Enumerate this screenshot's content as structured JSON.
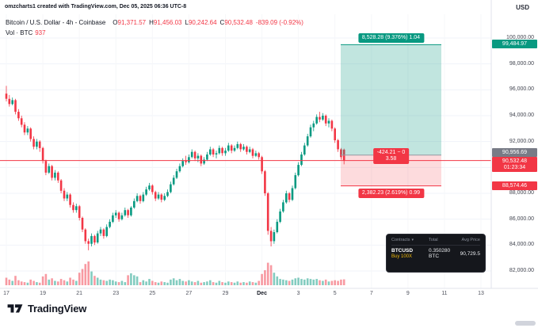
{
  "attribution": "omzcharts1 created with TradingView.com, Dec 05, 2025 06:36 UTC-8",
  "currency_label": "USD",
  "last_price": 90532.48,
  "legend": {
    "title": "Bitcoin / U.S. Dollar - 4h - Coinbase",
    "o_label": "O",
    "o": "91,371.57",
    "h_label": "H",
    "h": "91,456.03",
    "l_label": "L",
    "l": "90,242.64",
    "c_label": "C",
    "c": "90,532.48",
    "change": "-839.09 (-0.92%)",
    "vol_label": "Vol · BTC",
    "vol_value": "937"
  },
  "position_tool": {
    "target_price": 99484.97,
    "entry_price": 90956.69,
    "stop_price": 88574.46,
    "target_label": "8,528.28 (9.376%) 1.04",
    "stop_label": "2,382.23 (2.619%) 0.99",
    "pnl_line1": "-424.21 − 0",
    "pnl_line2": "3.58",
    "target_badge": "99,484.97",
    "entry_badge": "90,956.69",
    "stop_badge": "88,574.46"
  },
  "price_badge": {
    "label": "90,532.48",
    "countdown": "01:23:34"
  },
  "broker_panel": {
    "header": [
      "Contracts",
      "Total",
      "Avg Price"
    ],
    "symbol": "BTCUSD",
    "side": "Buy 100X",
    "total": "0.350280 BTC",
    "avg_price": "90,729.5"
  },
  "footer": {
    "brand": "TradingView"
  },
  "colors": {
    "up": "#089981",
    "down": "#f23645",
    "vol_up": "rgba(8,153,129,0.5)",
    "vol_down": "rgba(242,54,69,0.5)",
    "profit_fill": "rgba(8,153,129,0.25)",
    "loss_fill": "rgba(242,54,69,0.18)",
    "grid": "#f0f3fa",
    "axis_border": "#e0e3eb"
  },
  "chart_data": {
    "type": "candlestick+volume",
    "title": "Bitcoin / U.S. Dollar, 4h, Coinbase",
    "interval": "4h",
    "y_range": [
      82000,
      100000
    ],
    "grid": true,
    "y_ticks": [
      {
        "value": 100000,
        "label": "100,000.00"
      },
      {
        "value": 98000,
        "label": "98,000.00"
      },
      {
        "value": 96000,
        "label": "96,000.00"
      },
      {
        "value": 94000,
        "label": "94,000.00"
      },
      {
        "value": 92000,
        "label": "92,000.00"
      },
      {
        "value": 90000,
        "label": "90,000.00"
      },
      {
        "value": 88000,
        "label": "88,000.00"
      },
      {
        "value": 86000,
        "label": "86,000.00"
      },
      {
        "value": 84000,
        "label": "84,000.00"
      },
      {
        "value": 82000,
        "label": "82,000.00"
      }
    ],
    "x_ticks": [
      {
        "label": "17",
        "i": 0
      },
      {
        "label": "19",
        "i": 12
      },
      {
        "label": "21",
        "i": 24
      },
      {
        "label": "23",
        "i": 36
      },
      {
        "label": "25",
        "i": 48
      },
      {
        "label": "27",
        "i": 60
      },
      {
        "label": "29",
        "i": 72
      },
      {
        "label": "Dec",
        "i": 84,
        "bold": true
      },
      {
        "label": "3",
        "i": 96
      },
      {
        "label": "5",
        "i": 108
      },
      {
        "label": "7",
        "i": 120
      },
      {
        "label": "9",
        "i": 132
      },
      {
        "label": "11",
        "i": 144
      },
      {
        "label": "13",
        "i": 156
      }
    ],
    "ohlc": [
      [
        95700,
        96300,
        95100,
        95300
      ],
      [
        95300,
        95600,
        94700,
        94900
      ],
      [
        94900,
        95400,
        94800,
        95200
      ],
      [
        95200,
        95300,
        94100,
        94300
      ],
      [
        94300,
        94500,
        93600,
        93800
      ],
      [
        93800,
        94000,
        93100,
        93300
      ],
      [
        93300,
        93500,
        92500,
        92700
      ],
      [
        92700,
        93200,
        92500,
        93000
      ],
      [
        93000,
        93100,
        92000,
        92200
      ],
      [
        92200,
        92400,
        91400,
        91600
      ],
      [
        91600,
        92200,
        91400,
        92000
      ],
      [
        92000,
        92100,
        91200,
        91500
      ],
      [
        91500,
        91600,
        90300,
        90500
      ],
      [
        90500,
        90600,
        89400,
        89600
      ],
      [
        89600,
        90300,
        89500,
        90100
      ],
      [
        90100,
        90200,
        89000,
        89200
      ],
      [
        89200,
        89800,
        89000,
        89600
      ],
      [
        89600,
        89700,
        88800,
        89000
      ],
      [
        89000,
        89100,
        88000,
        88200
      ],
      [
        88200,
        88400,
        87400,
        87600
      ],
      [
        87600,
        88100,
        87400,
        87900
      ],
      [
        87900,
        88000,
        86900,
        87100
      ],
      [
        87100,
        87300,
        86500,
        86700
      ],
      [
        86700,
        87200,
        86500,
        87000
      ],
      [
        87000,
        87100,
        85900,
        86100
      ],
      [
        86100,
        86200,
        85000,
        85200
      ],
      [
        85200,
        85300,
        84100,
        84300
      ],
      [
        84300,
        84500,
        83600,
        84100
      ],
      [
        84100,
        84900,
        83900,
        84700
      ],
      [
        84700,
        84800,
        84000,
        84200
      ],
      [
        84200,
        85100,
        84100,
        84900
      ],
      [
        84900,
        85400,
        84700,
        85200
      ],
      [
        85200,
        85300,
        84500,
        84700
      ],
      [
        84700,
        85600,
        84600,
        85400
      ],
      [
        85400,
        86000,
        85300,
        85800
      ],
      [
        85800,
        86500,
        85700,
        86300
      ],
      [
        86300,
        86700,
        86100,
        86500
      ],
      [
        86500,
        86600,
        85800,
        86000
      ],
      [
        86000,
        86500,
        85900,
        86300
      ],
      [
        86300,
        86900,
        86200,
        86700
      ],
      [
        86700,
        86800,
        86100,
        86300
      ],
      [
        86300,
        87000,
        86200,
        86900
      ],
      [
        86900,
        87600,
        86800,
        87400
      ],
      [
        87400,
        88000,
        87300,
        87800
      ],
      [
        87800,
        87900,
        87200,
        87400
      ],
      [
        87400,
        88100,
        87300,
        87900
      ],
      [
        87900,
        88500,
        87800,
        88300
      ],
      [
        88300,
        88800,
        88200,
        88600
      ],
      [
        88600,
        88700,
        87900,
        88100
      ],
      [
        88100,
        88200,
        87400,
        87600
      ],
      [
        87600,
        88100,
        87500,
        87900
      ],
      [
        87900,
        88000,
        87300,
        87500
      ],
      [
        87500,
        88000,
        87400,
        87800
      ],
      [
        87800,
        88300,
        87700,
        88100
      ],
      [
        88100,
        88900,
        88000,
        88700
      ],
      [
        88700,
        89400,
        88600,
        89200
      ],
      [
        89200,
        89900,
        89100,
        89700
      ],
      [
        89700,
        90300,
        89600,
        90100
      ],
      [
        90100,
        90700,
        90000,
        90500
      ],
      [
        90500,
        90900,
        90200,
        90400
      ],
      [
        90400,
        91000,
        90300,
        90800
      ],
      [
        90800,
        91400,
        90700,
        91200
      ],
      [
        91200,
        91300,
        90500,
        90700
      ],
      [
        90700,
        91100,
        90400,
        90900
      ],
      [
        90900,
        91000,
        90100,
        90300
      ],
      [
        90300,
        90800,
        90200,
        90600
      ],
      [
        90600,
        91200,
        90500,
        91000
      ],
      [
        91000,
        91600,
        90900,
        91400
      ],
      [
        91400,
        91500,
        90800,
        91000
      ],
      [
        91000,
        91300,
        90700,
        91100
      ],
      [
        91100,
        91700,
        91000,
        91500
      ],
      [
        91500,
        91600,
        90900,
        91100
      ],
      [
        91100,
        91500,
        90900,
        91300
      ],
      [
        91300,
        91900,
        91200,
        91700
      ],
      [
        91700,
        91800,
        91100,
        91300
      ],
      [
        91300,
        91700,
        91200,
        91500
      ],
      [
        91500,
        92000,
        91400,
        91800
      ],
      [
        91800,
        91900,
        91200,
        91400
      ],
      [
        91400,
        91800,
        91300,
        91600
      ],
      [
        91600,
        91700,
        91000,
        91200
      ],
      [
        91200,
        91600,
        91100,
        91400
      ],
      [
        91400,
        91500,
        90700,
        90900
      ],
      [
        90900,
        91300,
        90800,
        91100
      ],
      [
        91100,
        91200,
        90600,
        90800
      ],
      [
        90800,
        90900,
        89500,
        89700
      ],
      [
        89700,
        89800,
        87800,
        88000
      ],
      [
        88000,
        88100,
        84800,
        85100
      ],
      [
        85100,
        85400,
        83900,
        84300
      ],
      [
        84300,
        85200,
        84100,
        85000
      ],
      [
        85000,
        86000,
        84900,
        85800
      ],
      [
        85800,
        86800,
        85700,
        86600
      ],
      [
        86600,
        87500,
        86500,
        87300
      ],
      [
        87300,
        88200,
        87200,
        88000
      ],
      [
        88000,
        88100,
        87300,
        87500
      ],
      [
        87500,
        88600,
        87400,
        88400
      ],
      [
        88400,
        89600,
        88300,
        89400
      ],
      [
        89400,
        90400,
        89300,
        90200
      ],
      [
        90200,
        91200,
        90100,
        91000
      ],
      [
        91000,
        91900,
        90900,
        91700
      ],
      [
        91700,
        92600,
        91600,
        92400
      ],
      [
        92400,
        93300,
        92300,
        93100
      ],
      [
        93100,
        93600,
        92800,
        93400
      ],
      [
        93400,
        94100,
        93300,
        93900
      ],
      [
        93900,
        94300,
        93500,
        93700
      ],
      [
        93700,
        94200,
        93600,
        94000
      ],
      [
        94000,
        94100,
        93200,
        93400
      ],
      [
        93400,
        93800,
        93100,
        93600
      ],
      [
        93600,
        93700,
        92800,
        93000
      ],
      [
        93000,
        93100,
        91900,
        92100
      ],
      [
        92100,
        92200,
        91200,
        91400
      ],
      [
        91400,
        91500,
        90600,
        90800
      ],
      [
        91371.57,
        91456.03,
        90242.64,
        90532.48
      ]
    ],
    "volumes": [
      1200,
      900,
      700,
      1500,
      800,
      600,
      500,
      400,
      900,
      700,
      500,
      400,
      1400,
      1800,
      900,
      1100,
      700,
      600,
      1000,
      800,
      600,
      1200,
      900,
      700,
      2000,
      2600,
      3400,
      3800,
      2200,
      1500,
      1200,
      900,
      800,
      700,
      900,
      800,
      600,
      500,
      700,
      500,
      1600,
      1900,
      1600,
      1400,
      500,
      800,
      600,
      1000,
      700,
      500,
      400,
      600,
      500,
      400,
      900,
      1100,
      800,
      1000,
      700,
      600,
      800,
      600,
      500,
      700,
      400,
      500,
      600,
      800,
      500,
      400,
      700,
      500,
      400,
      600,
      500,
      400,
      600,
      400,
      500,
      400,
      600,
      500,
      400,
      700,
      1800,
      2400,
      3600,
      3200,
      2000,
      1400,
      1000,
      900,
      800,
      700,
      900,
      1100,
      1200,
      1000,
      900,
      1100,
      1000,
      900,
      1000,
      800,
      700,
      900,
      600,
      700,
      800,
      700,
      900,
      937
    ]
  }
}
